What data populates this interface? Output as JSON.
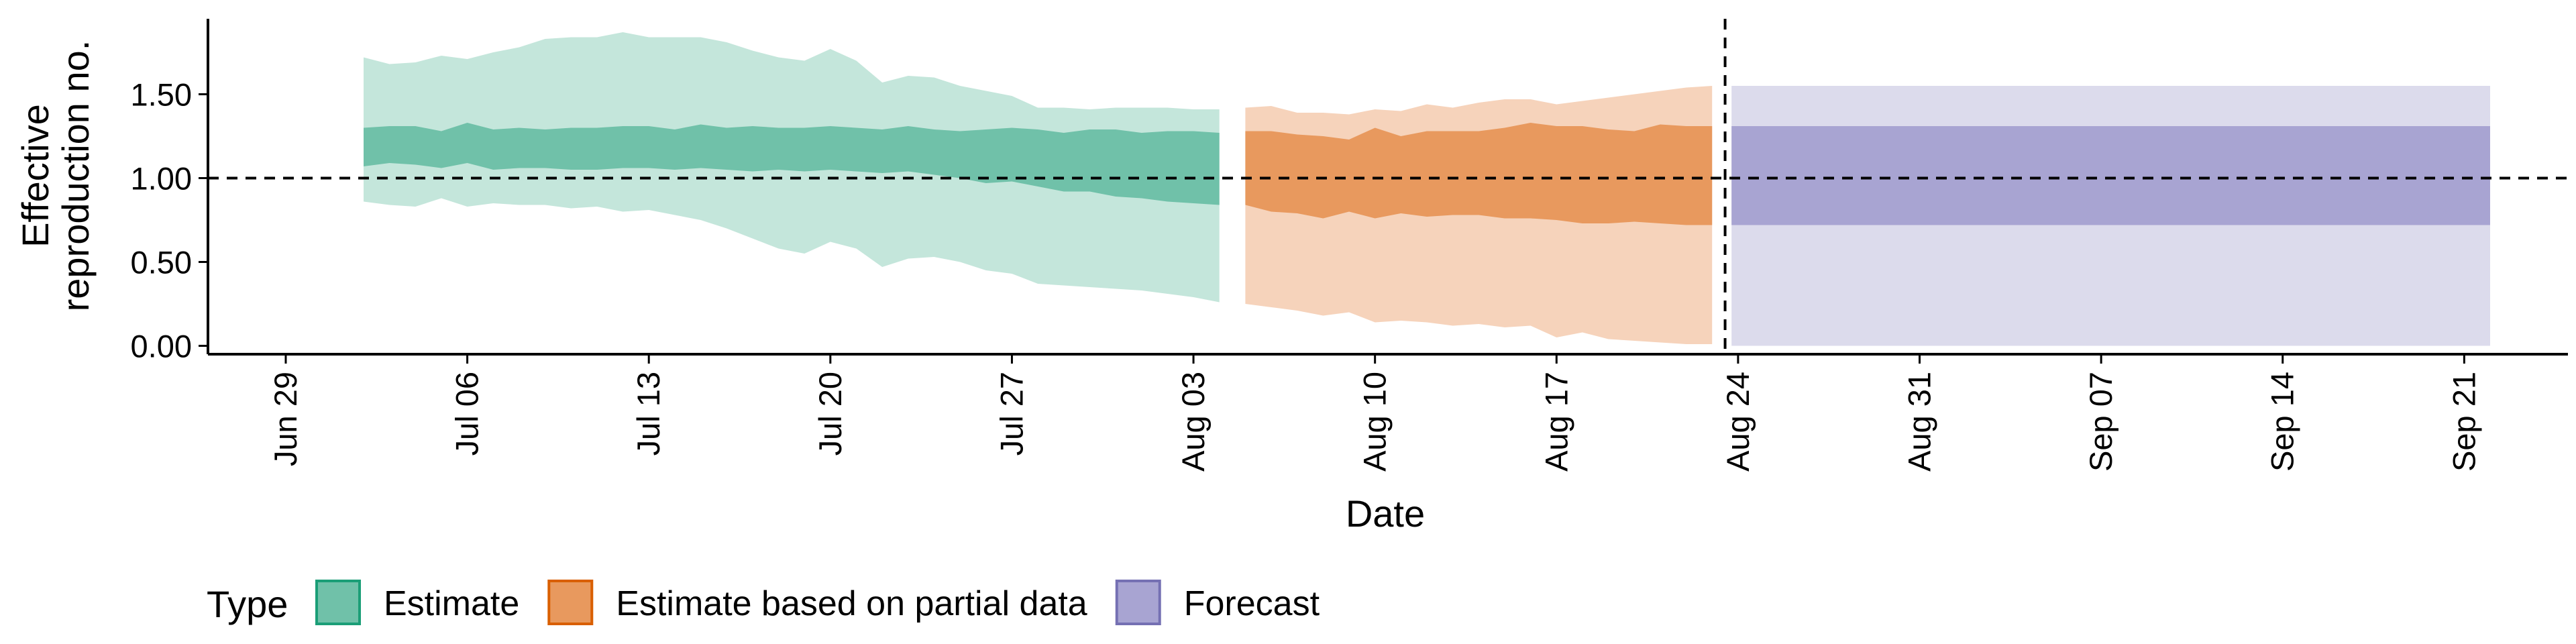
{
  "chart_data": {
    "type": "area",
    "title": "",
    "xlabel": "Date",
    "ylabel_lines": [
      "Effective",
      "reproduction no."
    ],
    "x_range": [
      "2020-06-26",
      "2020-09-25"
    ],
    "ylim": [
      -0.05,
      1.95
    ],
    "x_ticks": [
      {
        "date": "2020-06-29",
        "label": "Jun 29"
      },
      {
        "date": "2020-07-06",
        "label": "Jul 06"
      },
      {
        "date": "2020-07-13",
        "label": "Jul 13"
      },
      {
        "date": "2020-07-20",
        "label": "Jul 20"
      },
      {
        "date": "2020-07-27",
        "label": "Jul 27"
      },
      {
        "date": "2020-08-03",
        "label": "Aug 03"
      },
      {
        "date": "2020-08-10",
        "label": "Aug 10"
      },
      {
        "date": "2020-08-17",
        "label": "Aug 17"
      },
      {
        "date": "2020-08-24",
        "label": "Aug 24"
      },
      {
        "date": "2020-08-31",
        "label": "Aug 31"
      },
      {
        "date": "2020-09-07",
        "label": "Sep 07"
      },
      {
        "date": "2020-09-14",
        "label": "Sep 14"
      },
      {
        "date": "2020-09-21",
        "label": "Sep 21"
      }
    ],
    "y_ticks": [
      {
        "value": 0,
        "label": "0.00"
      },
      {
        "value": 0.5,
        "label": "0.50"
      },
      {
        "value": 1.0,
        "label": "1.00"
      },
      {
        "value": 1.5,
        "label": "1.50"
      }
    ],
    "reference_line_y": 1.0,
    "forecast_date": "2020-08-23",
    "grid": false,
    "legend": {
      "title": "Type",
      "position": "bottom-left",
      "entries": [
        {
          "label": "Estimate",
          "color": "#70c1a9",
          "border": "#1b9e77"
        },
        {
          "label": "Estimate based on partial data",
          "color": "#e8995e",
          "border": "#d95f02"
        },
        {
          "label": "Forecast",
          "color": "#a8a4d2",
          "border": "#7570b3"
        }
      ]
    },
    "series": [
      {
        "type": "Estimate",
        "inner_color": "#70c1a9",
        "outer_color": "#c4e6db",
        "points": [
          {
            "date": "2020-07-02",
            "lower90": 0.86,
            "lower50": 1.07,
            "upper50": 1.3,
            "upper90": 1.72
          },
          {
            "date": "2020-07-03",
            "lower90": 0.84,
            "lower50": 1.09,
            "upper50": 1.31,
            "upper90": 1.68
          },
          {
            "date": "2020-07-04",
            "lower90": 0.83,
            "lower50": 1.08,
            "upper50": 1.31,
            "upper90": 1.69
          },
          {
            "date": "2020-07-05",
            "lower90": 0.88,
            "lower50": 1.06,
            "upper50": 1.28,
            "upper90": 1.73
          },
          {
            "date": "2020-07-06",
            "lower90": 0.83,
            "lower50": 1.09,
            "upper50": 1.33,
            "upper90": 1.71
          },
          {
            "date": "2020-07-07",
            "lower90": 0.85,
            "lower50": 1.05,
            "upper50": 1.29,
            "upper90": 1.75
          },
          {
            "date": "2020-07-08",
            "lower90": 0.84,
            "lower50": 1.06,
            "upper50": 1.3,
            "upper90": 1.78
          },
          {
            "date": "2020-07-09",
            "lower90": 0.84,
            "lower50": 1.06,
            "upper50": 1.29,
            "upper90": 1.83
          },
          {
            "date": "2020-07-10",
            "lower90": 0.82,
            "lower50": 1.05,
            "upper50": 1.3,
            "upper90": 1.84
          },
          {
            "date": "2020-07-11",
            "lower90": 0.83,
            "lower50": 1.05,
            "upper50": 1.3,
            "upper90": 1.84
          },
          {
            "date": "2020-07-12",
            "lower90": 0.8,
            "lower50": 1.06,
            "upper50": 1.31,
            "upper90": 1.87
          },
          {
            "date": "2020-07-13",
            "lower90": 0.81,
            "lower50": 1.06,
            "upper50": 1.31,
            "upper90": 1.84
          },
          {
            "date": "2020-07-14",
            "lower90": 0.78,
            "lower50": 1.05,
            "upper50": 1.29,
            "upper90": 1.84
          },
          {
            "date": "2020-07-15",
            "lower90": 0.75,
            "lower50": 1.06,
            "upper50": 1.32,
            "upper90": 1.84
          },
          {
            "date": "2020-07-16",
            "lower90": 0.7,
            "lower50": 1.05,
            "upper50": 1.3,
            "upper90": 1.81
          },
          {
            "date": "2020-07-17",
            "lower90": 0.64,
            "lower50": 1.04,
            "upper50": 1.31,
            "upper90": 1.76
          },
          {
            "date": "2020-07-18",
            "lower90": 0.58,
            "lower50": 1.05,
            "upper50": 1.3,
            "upper90": 1.72
          },
          {
            "date": "2020-07-19",
            "lower90": 0.55,
            "lower50": 1.04,
            "upper50": 1.3,
            "upper90": 1.7
          },
          {
            "date": "2020-07-20",
            "lower90": 0.62,
            "lower50": 1.05,
            "upper50": 1.31,
            "upper90": 1.77
          },
          {
            "date": "2020-07-21",
            "lower90": 0.58,
            "lower50": 1.04,
            "upper50": 1.3,
            "upper90": 1.7
          },
          {
            "date": "2020-07-22",
            "lower90": 0.47,
            "lower50": 1.03,
            "upper50": 1.29,
            "upper90": 1.57
          },
          {
            "date": "2020-07-23",
            "lower90": 0.52,
            "lower50": 1.04,
            "upper50": 1.31,
            "upper90": 1.61
          },
          {
            "date": "2020-07-24",
            "lower90": 0.53,
            "lower50": 1.02,
            "upper50": 1.29,
            "upper90": 1.6
          },
          {
            "date": "2020-07-25",
            "lower90": 0.5,
            "lower50": 1.0,
            "upper50": 1.28,
            "upper90": 1.55
          },
          {
            "date": "2020-07-26",
            "lower90": 0.45,
            "lower50": 0.97,
            "upper50": 1.29,
            "upper90": 1.52
          },
          {
            "date": "2020-07-27",
            "lower90": 0.43,
            "lower50": 0.98,
            "upper50": 1.3,
            "upper90": 1.49
          },
          {
            "date": "2020-07-28",
            "lower90": 0.37,
            "lower50": 0.95,
            "upper50": 1.29,
            "upper90": 1.42
          },
          {
            "date": "2020-07-29",
            "lower90": 0.36,
            "lower50": 0.92,
            "upper50": 1.27,
            "upper90": 1.42
          },
          {
            "date": "2020-07-30",
            "lower90": 0.35,
            "lower50": 0.92,
            "upper50": 1.29,
            "upper90": 1.41
          },
          {
            "date": "2020-07-31",
            "lower90": 0.34,
            "lower50": 0.89,
            "upper50": 1.29,
            "upper90": 1.42
          },
          {
            "date": "2020-08-01",
            "lower90": 0.33,
            "lower50": 0.88,
            "upper50": 1.27,
            "upper90": 1.42
          },
          {
            "date": "2020-08-02",
            "lower90": 0.31,
            "lower50": 0.86,
            "upper50": 1.28,
            "upper90": 1.42
          },
          {
            "date": "2020-08-03",
            "lower90": 0.29,
            "lower50": 0.85,
            "upper50": 1.28,
            "upper90": 1.41
          },
          {
            "date": "2020-08-04",
            "lower90": 0.26,
            "lower50": 0.84,
            "upper50": 1.27,
            "upper90": 1.41
          }
        ]
      },
      {
        "type": "Estimate based on partial data",
        "inner_color": "#e8995e",
        "outer_color": "#f6d3bb",
        "points": [
          {
            "date": "2020-08-05",
            "lower90": 0.25,
            "lower50": 0.84,
            "upper50": 1.28,
            "upper90": 1.42
          },
          {
            "date": "2020-08-06",
            "lower90": 0.23,
            "lower50": 0.8,
            "upper50": 1.28,
            "upper90": 1.43
          },
          {
            "date": "2020-08-07",
            "lower90": 0.21,
            "lower50": 0.79,
            "upper50": 1.26,
            "upper90": 1.39
          },
          {
            "date": "2020-08-08",
            "lower90": 0.18,
            "lower50": 0.76,
            "upper50": 1.25,
            "upper90": 1.39
          },
          {
            "date": "2020-08-09",
            "lower90": 0.2,
            "lower50": 0.8,
            "upper50": 1.23,
            "upper90": 1.38
          },
          {
            "date": "2020-08-10",
            "lower90": 0.14,
            "lower50": 0.76,
            "upper50": 1.3,
            "upper90": 1.41
          },
          {
            "date": "2020-08-11",
            "lower90": 0.15,
            "lower50": 0.79,
            "upper50": 1.25,
            "upper90": 1.4
          },
          {
            "date": "2020-08-12",
            "lower90": 0.14,
            "lower50": 0.77,
            "upper50": 1.28,
            "upper90": 1.44
          },
          {
            "date": "2020-08-13",
            "lower90": 0.12,
            "lower50": 0.78,
            "upper50": 1.28,
            "upper90": 1.42
          },
          {
            "date": "2020-08-14",
            "lower90": 0.13,
            "lower50": 0.78,
            "upper50": 1.28,
            "upper90": 1.45
          },
          {
            "date": "2020-08-15",
            "lower90": 0.11,
            "lower50": 0.76,
            "upper50": 1.3,
            "upper90": 1.47
          },
          {
            "date": "2020-08-16",
            "lower90": 0.12,
            "lower50": 0.76,
            "upper50": 1.33,
            "upper90": 1.47
          },
          {
            "date": "2020-08-17",
            "lower90": 0.05,
            "lower50": 0.75,
            "upper50": 1.31,
            "upper90": 1.44
          },
          {
            "date": "2020-08-18",
            "lower90": 0.08,
            "lower50": 0.73,
            "upper50": 1.31,
            "upper90": 1.46
          },
          {
            "date": "2020-08-19",
            "lower90": 0.04,
            "lower50": 0.73,
            "upper50": 1.29,
            "upper90": 1.48
          },
          {
            "date": "2020-08-20",
            "lower90": 0.03,
            "lower50": 0.74,
            "upper50": 1.28,
            "upper90": 1.5
          },
          {
            "date": "2020-08-21",
            "lower90": 0.02,
            "lower50": 0.73,
            "upper50": 1.32,
            "upper90": 1.52
          },
          {
            "date": "2020-08-22",
            "lower90": 0.01,
            "lower50": 0.72,
            "upper50": 1.31,
            "upper90": 1.54
          },
          {
            "date": "2020-08-23",
            "lower90": 0.01,
            "lower50": 0.72,
            "upper50": 1.31,
            "upper90": 1.55
          }
        ]
      },
      {
        "type": "Forecast",
        "inner_color": "#a8a4d2",
        "outer_color": "#dcdbec",
        "points": [
          {
            "date": "2020-08-24",
            "lower90": 0.0,
            "lower50": 0.72,
            "upper50": 1.31,
            "upper90": 1.55
          },
          {
            "date": "2020-09-22",
            "lower90": 0.0,
            "lower50": 0.72,
            "upper50": 1.31,
            "upper90": 1.55
          }
        ]
      }
    ]
  }
}
